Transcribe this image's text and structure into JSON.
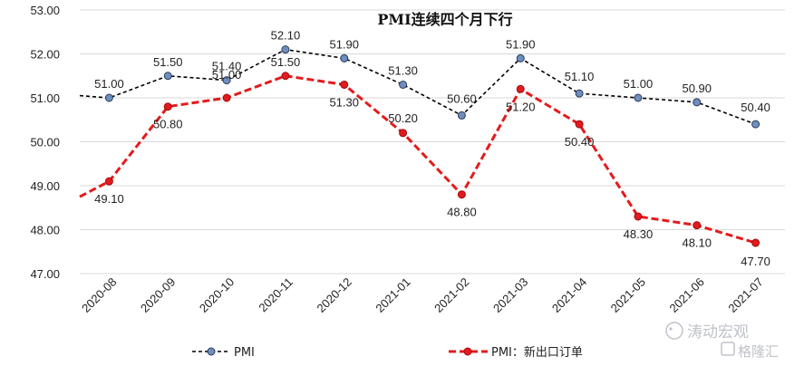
{
  "chart_data": {
    "type": "line",
    "title": "PMI连续四个月下行",
    "categories": [
      "2020-08",
      "2020-09",
      "2020-10",
      "2020-11",
      "2020-12",
      "2021-01",
      "2021-02",
      "2021-03",
      "2021-04",
      "2021-05",
      "2021-06",
      "2021-07"
    ],
    "series": [
      {
        "name": "PMI",
        "values": [
          51.0,
          51.5,
          51.4,
          52.1,
          51.9,
          51.3,
          50.6,
          51.9,
          51.1,
          51.0,
          50.9,
          50.4
        ],
        "labels": [
          "51.00",
          "51.50",
          "51.40",
          "52.10",
          "51.90",
          "51.30",
          "50.60",
          "51.90",
          "51.10",
          "51.00",
          "50.90",
          "50.40"
        ],
        "line_left_start": 51.05,
        "color": "#000000",
        "marker_color": "#6f8ebf"
      },
      {
        "name": "PMI：新出口订单",
        "values": [
          49.1,
          50.8,
          51.0,
          51.5,
          51.3,
          50.2,
          48.8,
          51.2,
          50.4,
          48.3,
          48.1,
          47.7
        ],
        "labels": [
          "49.10",
          "50.80",
          "51.00",
          "51.50",
          "51.30",
          "50.20",
          "48.80",
          "51.20",
          "50.40",
          "48.30",
          "48.10",
          "47.70"
        ],
        "line_left_start": 48.75,
        "color": "#e41a1c",
        "marker_color": "#e41a1c"
      }
    ],
    "yticks": [
      "53.00",
      "52.00",
      "51.00",
      "50.00",
      "49.00",
      "48.00",
      "47.00"
    ],
    "ylim": [
      47,
      53
    ],
    "grid": true,
    "legend": "bottom"
  },
  "watermark": {
    "text_1": "涛动宏观",
    "text_2": "格隆汇"
  }
}
